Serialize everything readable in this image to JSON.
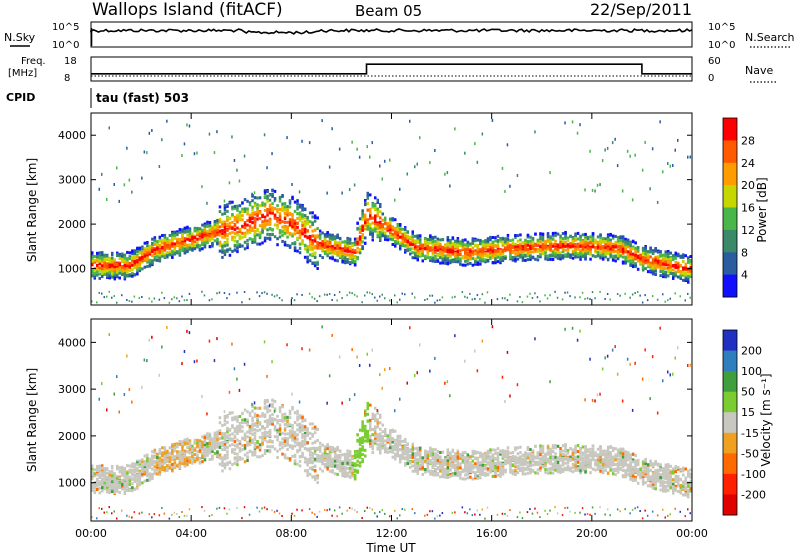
{
  "header": {
    "station": "Wallops Island (fitACF)",
    "beam": "Beam 05",
    "date": "22/Sep/2011"
  },
  "side_labels": {
    "nsky": "N.Sky",
    "nsky_hi": "10^5",
    "nsky_lo": "10^0",
    "nsearch": "N.Search",
    "nsearch_hi": "10^5",
    "nsearch_lo": "10^0",
    "freq_line1": "Freq.",
    "freq_line2": "[MHz]",
    "freq_hi": "18",
    "freq_lo": "8",
    "nave": "Nave",
    "nave_hi": "60",
    "nave_lo": "0",
    "cpid": "CPID",
    "cpid_value": "tau (fast) 503"
  },
  "chart_data": [
    {
      "type": "heatmap",
      "panel": "power",
      "ylabel": "Slant Range [km]",
      "ylim": [
        180,
        4500
      ],
      "yticks": [
        "1000",
        "2000",
        "3000",
        "4000"
      ],
      "xticks": [
        "00:00",
        "04:00",
        "08:00",
        "12:00",
        "16:00",
        "20:00",
        "00:00"
      ],
      "colorbar_label": "Power [dB]",
      "colorbar_ticks": [
        "28",
        "24",
        "20",
        "16",
        "12",
        "8",
        "4"
      ],
      "colorbar_colors": [
        "#ff0000",
        "#ff5a00",
        "#ff9c00",
        "#c6d600",
        "#48b648",
        "#3a8a6a",
        "#2a5ca0",
        "#0000ff"
      ],
      "band_center_km": [
        [
          0,
          1100
        ],
        [
          1.5,
          1100
        ],
        [
          2.5,
          1450
        ],
        [
          4,
          1700
        ],
        [
          6,
          2000
        ],
        [
          7,
          2250
        ],
        [
          8,
          2050
        ],
        [
          9,
          1600
        ],
        [
          10.5,
          1400
        ],
        [
          11,
          2250
        ],
        [
          13,
          1500
        ],
        [
          15,
          1400
        ],
        [
          17,
          1500
        ],
        [
          19,
          1550
        ],
        [
          21,
          1500
        ],
        [
          22,
          1250
        ],
        [
          24,
          1000
        ]
      ]
    },
    {
      "type": "heatmap",
      "panel": "velocity",
      "ylabel": "Slant Range [km]",
      "ylim": [
        180,
        4500
      ],
      "yticks": [
        "1000",
        "2000",
        "3000",
        "4000"
      ],
      "xticks": [
        "00:00",
        "04:00",
        "08:00",
        "12:00",
        "16:00",
        "20:00",
        "00:00"
      ],
      "xlabel": "Time UT",
      "colorbar_label": "Velocity [m s⁻¹]",
      "colorbar_ticks": [
        "200",
        "100",
        "50",
        "15",
        "-15",
        "-50",
        "-100",
        "-200"
      ],
      "colorbar_colors": [
        "#2030c0",
        "#2f7fbf",
        "#3f9f3f",
        "#7acc30",
        "#c8c8c0",
        "#f0a020",
        "#ff6a00",
        "#ff2000",
        "#e00000"
      ]
    },
    {
      "type": "line",
      "panel": "freq",
      "ylim": [
        8,
        18
      ],
      "x": [
        0,
        11.0,
        11.0,
        22.0,
        22.0,
        24
      ],
      "values": [
        11,
        11,
        15,
        15,
        11,
        11
      ]
    }
  ]
}
